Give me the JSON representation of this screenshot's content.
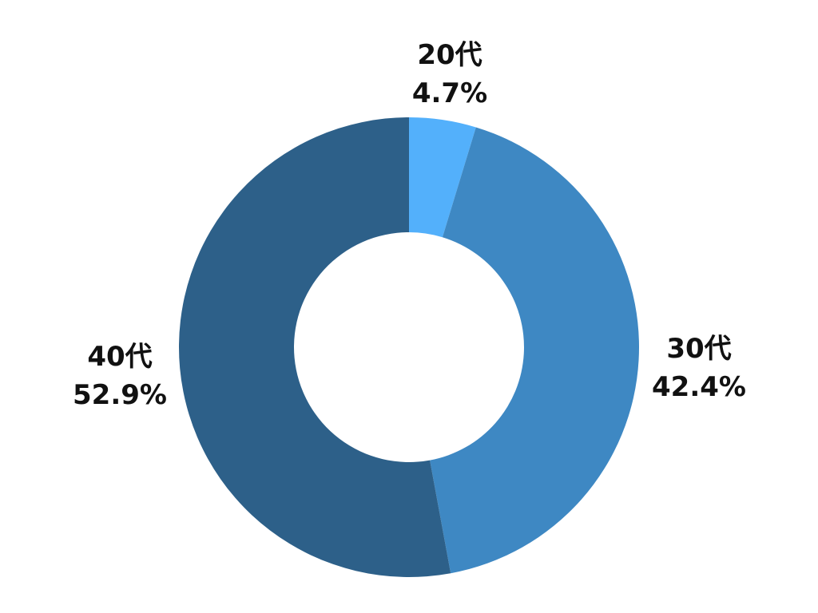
{
  "chart_data": {
    "type": "pie",
    "variant": "donut",
    "title": "",
    "categories": [
      "20代",
      "30代",
      "40代"
    ],
    "values": [
      4.7,
      42.4,
      52.9
    ],
    "value_labels": [
      "4.7%",
      "42.4%",
      "52.9%"
    ],
    "colors": [
      "#53b0fb",
      "#3e88c3",
      "#2d6089"
    ],
    "start": "top",
    "direction": "clockwise",
    "legend": "none",
    "labels_position": "outside"
  }
}
